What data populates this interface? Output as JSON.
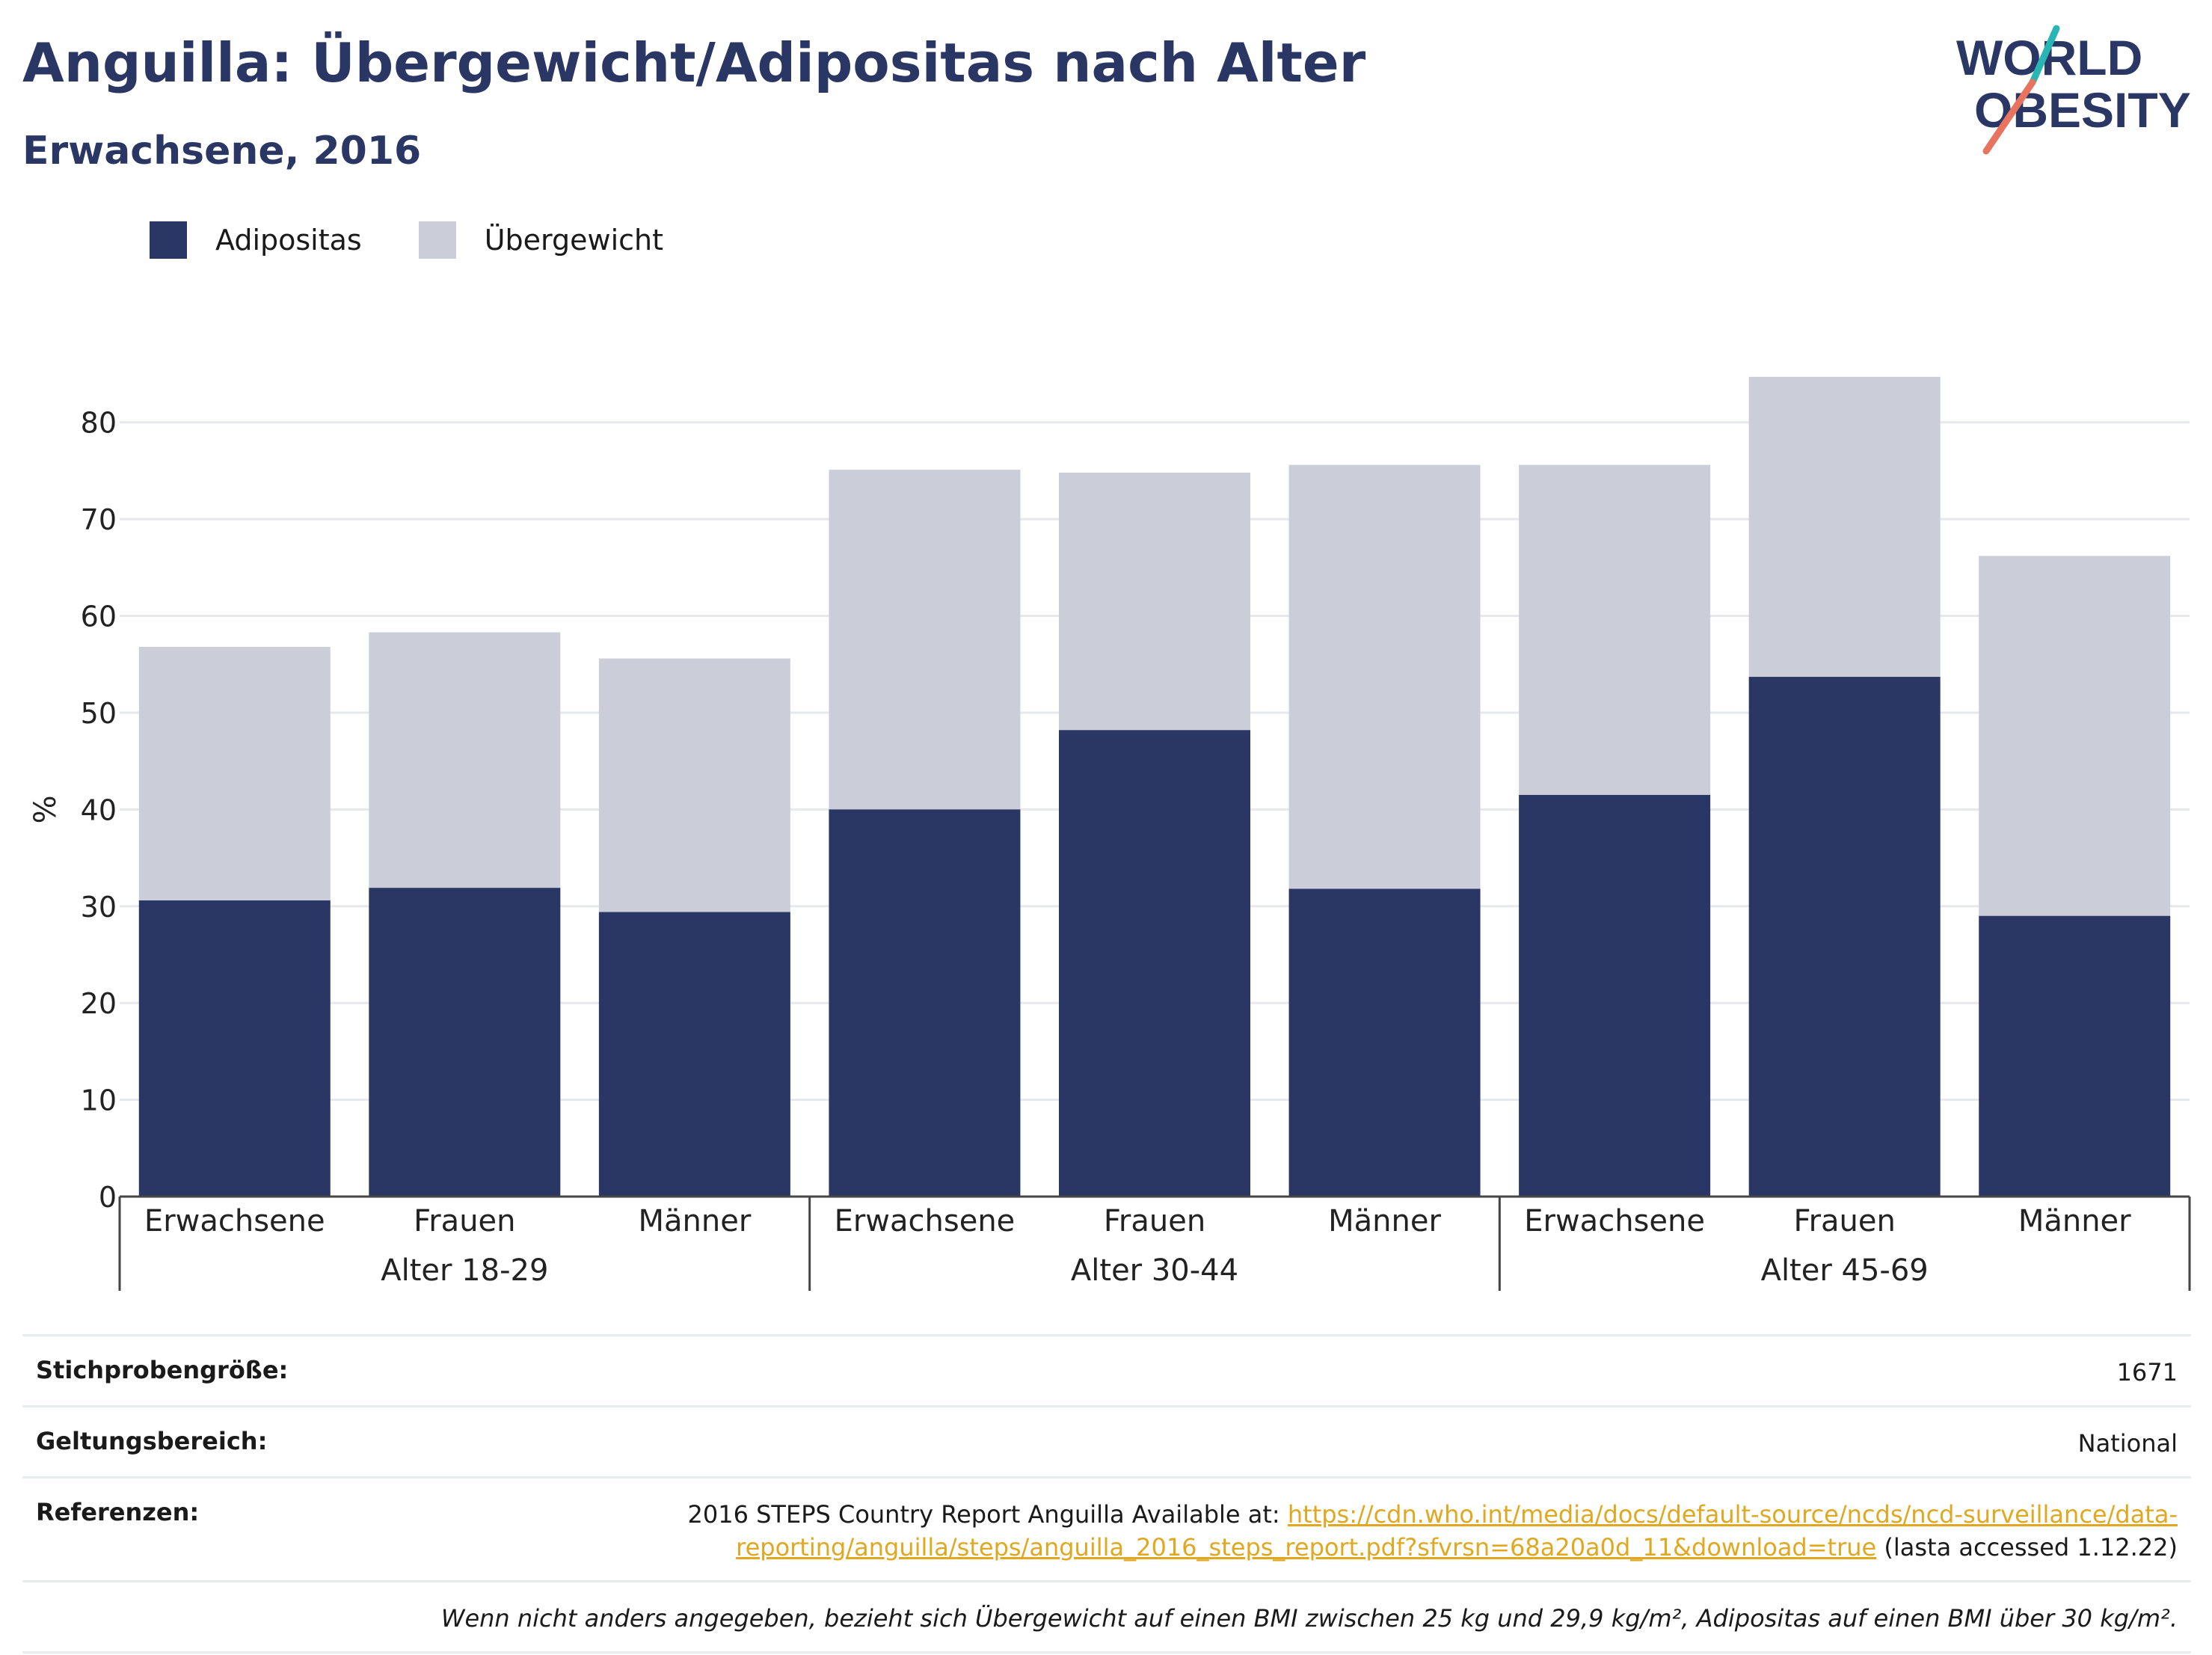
{
  "title": "Anguilla: Übergewicht/Adipositas nach Alter",
  "subtitle": "Erwachsene, 2016",
  "logo": {
    "line1": "WORLD",
    "line2": "OBESITY"
  },
  "colors": {
    "adipositas": "#2a3663",
    "uebergewicht": "#cbcdd9",
    "title": "#2a3663",
    "link": "#e0a820",
    "logo_teal": "#2ab5b5",
    "logo_coral": "#e8735f"
  },
  "legend": [
    {
      "label": "Adipositas",
      "color": "#2a3663"
    },
    {
      "label": "Übergewicht",
      "color": "#cbcdd9"
    }
  ],
  "chart_data": {
    "type": "bar",
    "stacked": true,
    "ylabel": "%",
    "ylim": [
      0,
      85
    ],
    "yticks": [
      0,
      10,
      20,
      30,
      40,
      50,
      60,
      70,
      80
    ],
    "grid": true,
    "groups": [
      "Alter 18-29",
      "Alter 30-44",
      "Alter 45-69"
    ],
    "categories": [
      "Erwachsene",
      "Frauen",
      "Männer",
      "Erwachsene",
      "Frauen",
      "Männer",
      "Erwachsene",
      "Frauen",
      "Männer"
    ],
    "series": [
      {
        "name": "Adipositas",
        "values": [
          30.6,
          31.9,
          29.4,
          40.0,
          48.2,
          31.8,
          41.5,
          53.7,
          29.0
        ]
      },
      {
        "name": "Übergewicht",
        "values": [
          26.2,
          26.4,
          26.2,
          35.1,
          26.6,
          43.8,
          34.1,
          31.0,
          37.2
        ]
      }
    ]
  },
  "info": {
    "sample_label": "Stichprobengröße:",
    "sample_value": "1671",
    "scope_label": "Geltungsbereich:",
    "scope_value": "National",
    "refs_label": "Referenzen:",
    "refs_text": "2016 STEPS Country Report Anguilla Available at: ",
    "refs_link": "https://cdn.who.int/media/docs/default-source/ncds/ncd-surveillance/data-reporting/anguilla/steps/anguilla_2016_steps_report.pdf?sfvrsn=68a20a0d_11&download=true",
    "refs_suffix": " (lasta accessed 1.12.22)",
    "note": "Wenn nicht anders angegeben, bezieht sich Übergewicht auf einen BMI zwischen 25 kg und 29,9 kg/m², Adipositas auf einen BMI über 30 kg/m²."
  }
}
